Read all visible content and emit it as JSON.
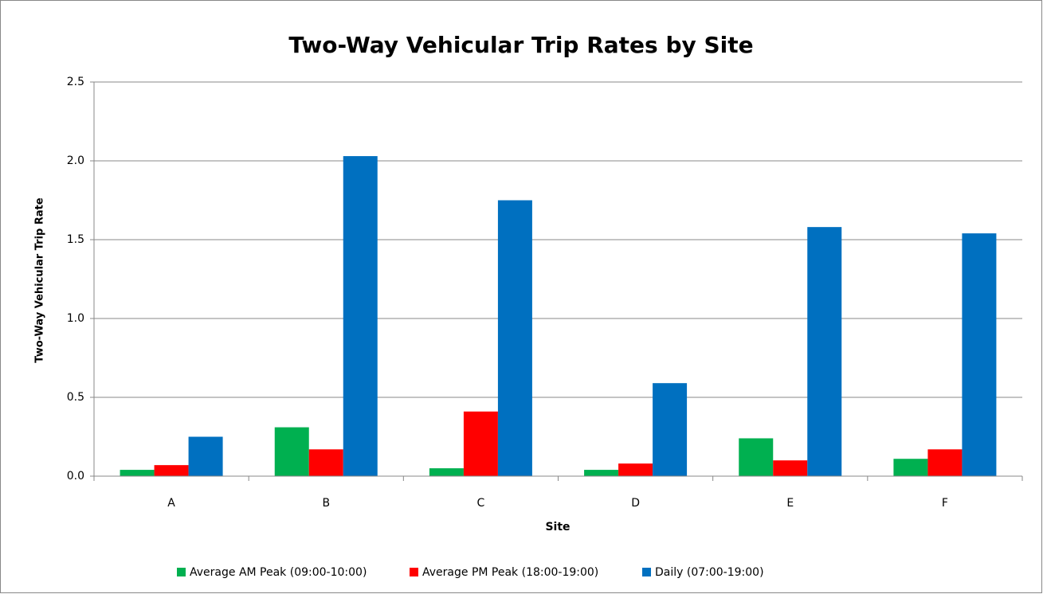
{
  "chart_data": {
    "type": "bar",
    "title": "Two-Way Vehicular Trip Rates by Site",
    "x_label": "Site",
    "y_label": "Two-Way Vehicular Trip Rate",
    "categories": [
      "A",
      "B",
      "C",
      "D",
      "E",
      "F"
    ],
    "series": [
      {
        "name": "Average AM Peak (09:00-10:00)",
        "color": "#00b050",
        "values": [
          0.04,
          0.31,
          0.05,
          0.04,
          0.24,
          0.11
        ]
      },
      {
        "name": "Average PM Peak (18:00-19:00)",
        "color": "#ff0000",
        "values": [
          0.07,
          0.17,
          0.41,
          0.08,
          0.1,
          0.17
        ]
      },
      {
        "name": "Daily (07:00-19:00)",
        "color": "#0070c0",
        "values": [
          0.25,
          2.03,
          1.75,
          0.59,
          1.58,
          1.54
        ]
      }
    ],
    "ylim": [
      0,
      2.5
    ],
    "yticks": [
      {
        "value": 0,
        "label": "0.0"
      },
      0.5,
      {
        "value": 1,
        "label": "1.0"
      },
      1.5,
      {
        "value": 2,
        "label": "2.0"
      },
      2.5
    ],
    "grid": true,
    "legend": "bottom"
  }
}
